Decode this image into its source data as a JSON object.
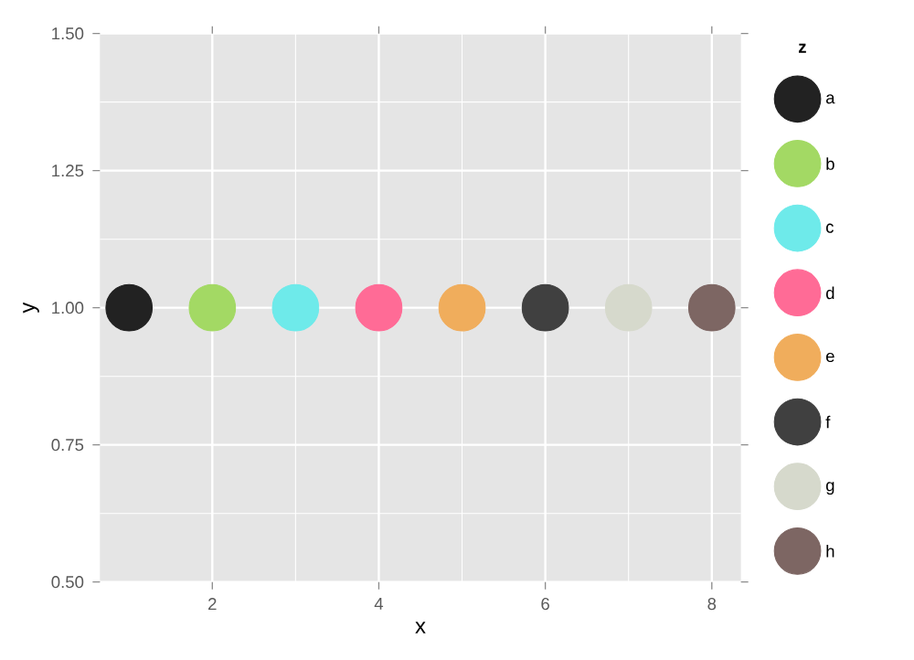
{
  "chart_data": {
    "type": "scatter",
    "xlabel": "x",
    "ylabel": "y",
    "legend_title": "z",
    "xlim": [
      0.65,
      8.35
    ],
    "xticks": [
      2,
      4,
      6,
      8
    ],
    "ylim": [
      0.5,
      1.5
    ],
    "yticks": [
      {
        "value": 0.5,
        "label": "0.50"
      },
      {
        "value": 0.75,
        "label": "0.75"
      },
      {
        "value": 1.0,
        "label": "1.00"
      },
      {
        "value": 1.25,
        "label": "1.25"
      },
      {
        "value": 1.5,
        "label": "1.50"
      }
    ],
    "grid": true,
    "legend": "right",
    "marker": "circle",
    "series": [
      {
        "name": "a",
        "color": "#222222",
        "x": [
          1
        ],
        "values": [
          1
        ]
      },
      {
        "name": "b",
        "color": "#a3d964",
        "x": [
          2
        ],
        "values": [
          1
        ]
      },
      {
        "name": "c",
        "color": "#6eeaea",
        "x": [
          3
        ],
        "values": [
          1
        ]
      },
      {
        "name": "d",
        "color": "#ff6b96",
        "x": [
          4
        ],
        "values": [
          1
        ]
      },
      {
        "name": "e",
        "color": "#f0ad5c",
        "x": [
          5
        ],
        "values": [
          1
        ]
      },
      {
        "name": "f",
        "color": "#404040",
        "x": [
          6
        ],
        "values": [
          1
        ]
      },
      {
        "name": "g",
        "color": "#d6d9cc",
        "x": [
          7
        ],
        "values": [
          1
        ]
      },
      {
        "name": "h",
        "color": "#7d6663",
        "x": [
          8
        ],
        "values": [
          1
        ]
      }
    ]
  }
}
